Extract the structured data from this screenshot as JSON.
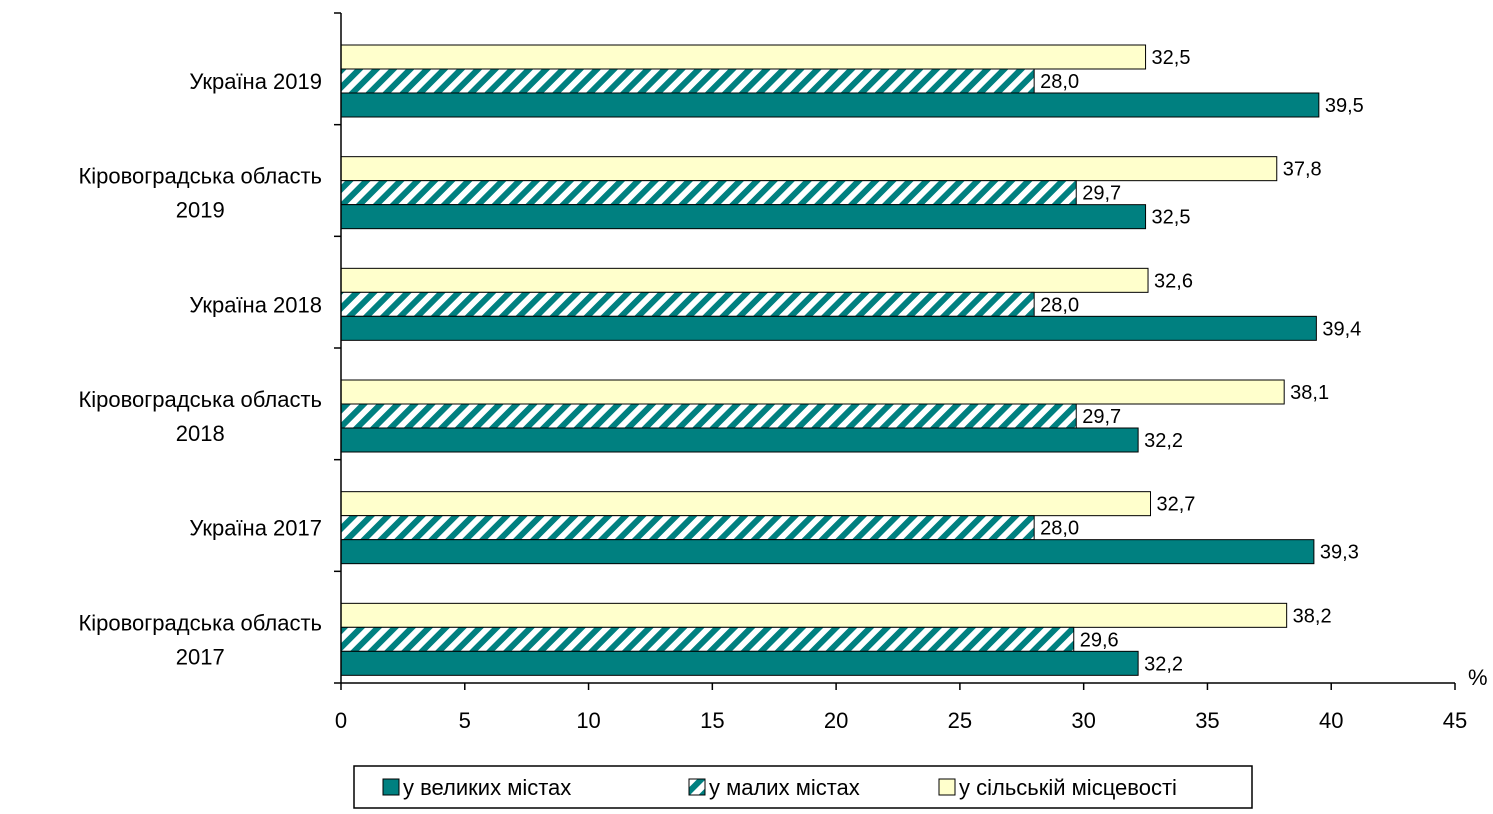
{
  "chart_data": {
    "type": "bar",
    "orientation": "horizontal",
    "categories": [
      [
        "Україна 2019"
      ],
      [
        "Кіровоградська область",
        "2019"
      ],
      [
        "Україна 2018"
      ],
      [
        "Кіровоградська область",
        "2018"
      ],
      [
        "Україна 2017"
      ],
      [
        "Кіровоградська область",
        "2017"
      ]
    ],
    "series": [
      {
        "name": "у великих містах",
        "values": [
          39.5,
          32.5,
          39.4,
          32.2,
          39.3,
          32.2
        ],
        "labels": [
          "39,5",
          "32,5",
          "39,4",
          "32,2",
          "39,3",
          "32,2"
        ],
        "color": "#008080",
        "pattern": "solid"
      },
      {
        "name": "у малих містах",
        "values": [
          28.0,
          29.7,
          28.0,
          29.7,
          28.0,
          29.6
        ],
        "labels": [
          "28,0",
          "29,7",
          "28,0",
          "29,7",
          "28,0",
          "29,6"
        ],
        "color": "#008080",
        "pattern": "diagonal-hatch"
      },
      {
        "name": "у сільській місцевості",
        "values": [
          32.5,
          37.8,
          32.6,
          38.1,
          32.7,
          38.2
        ],
        "labels": [
          "32,5",
          "37,8",
          "32,6",
          "38,1",
          "32,7",
          "38,2"
        ],
        "color": "#ffffcc",
        "pattern": "solid"
      }
    ],
    "xlim": [
      0,
      45
    ],
    "xticks": [
      "0",
      "5",
      "10",
      "15",
      "20",
      "25",
      "30",
      "35",
      "40",
      "45"
    ],
    "xlabel": "%",
    "grid": false,
    "legend_position": "bottom"
  }
}
